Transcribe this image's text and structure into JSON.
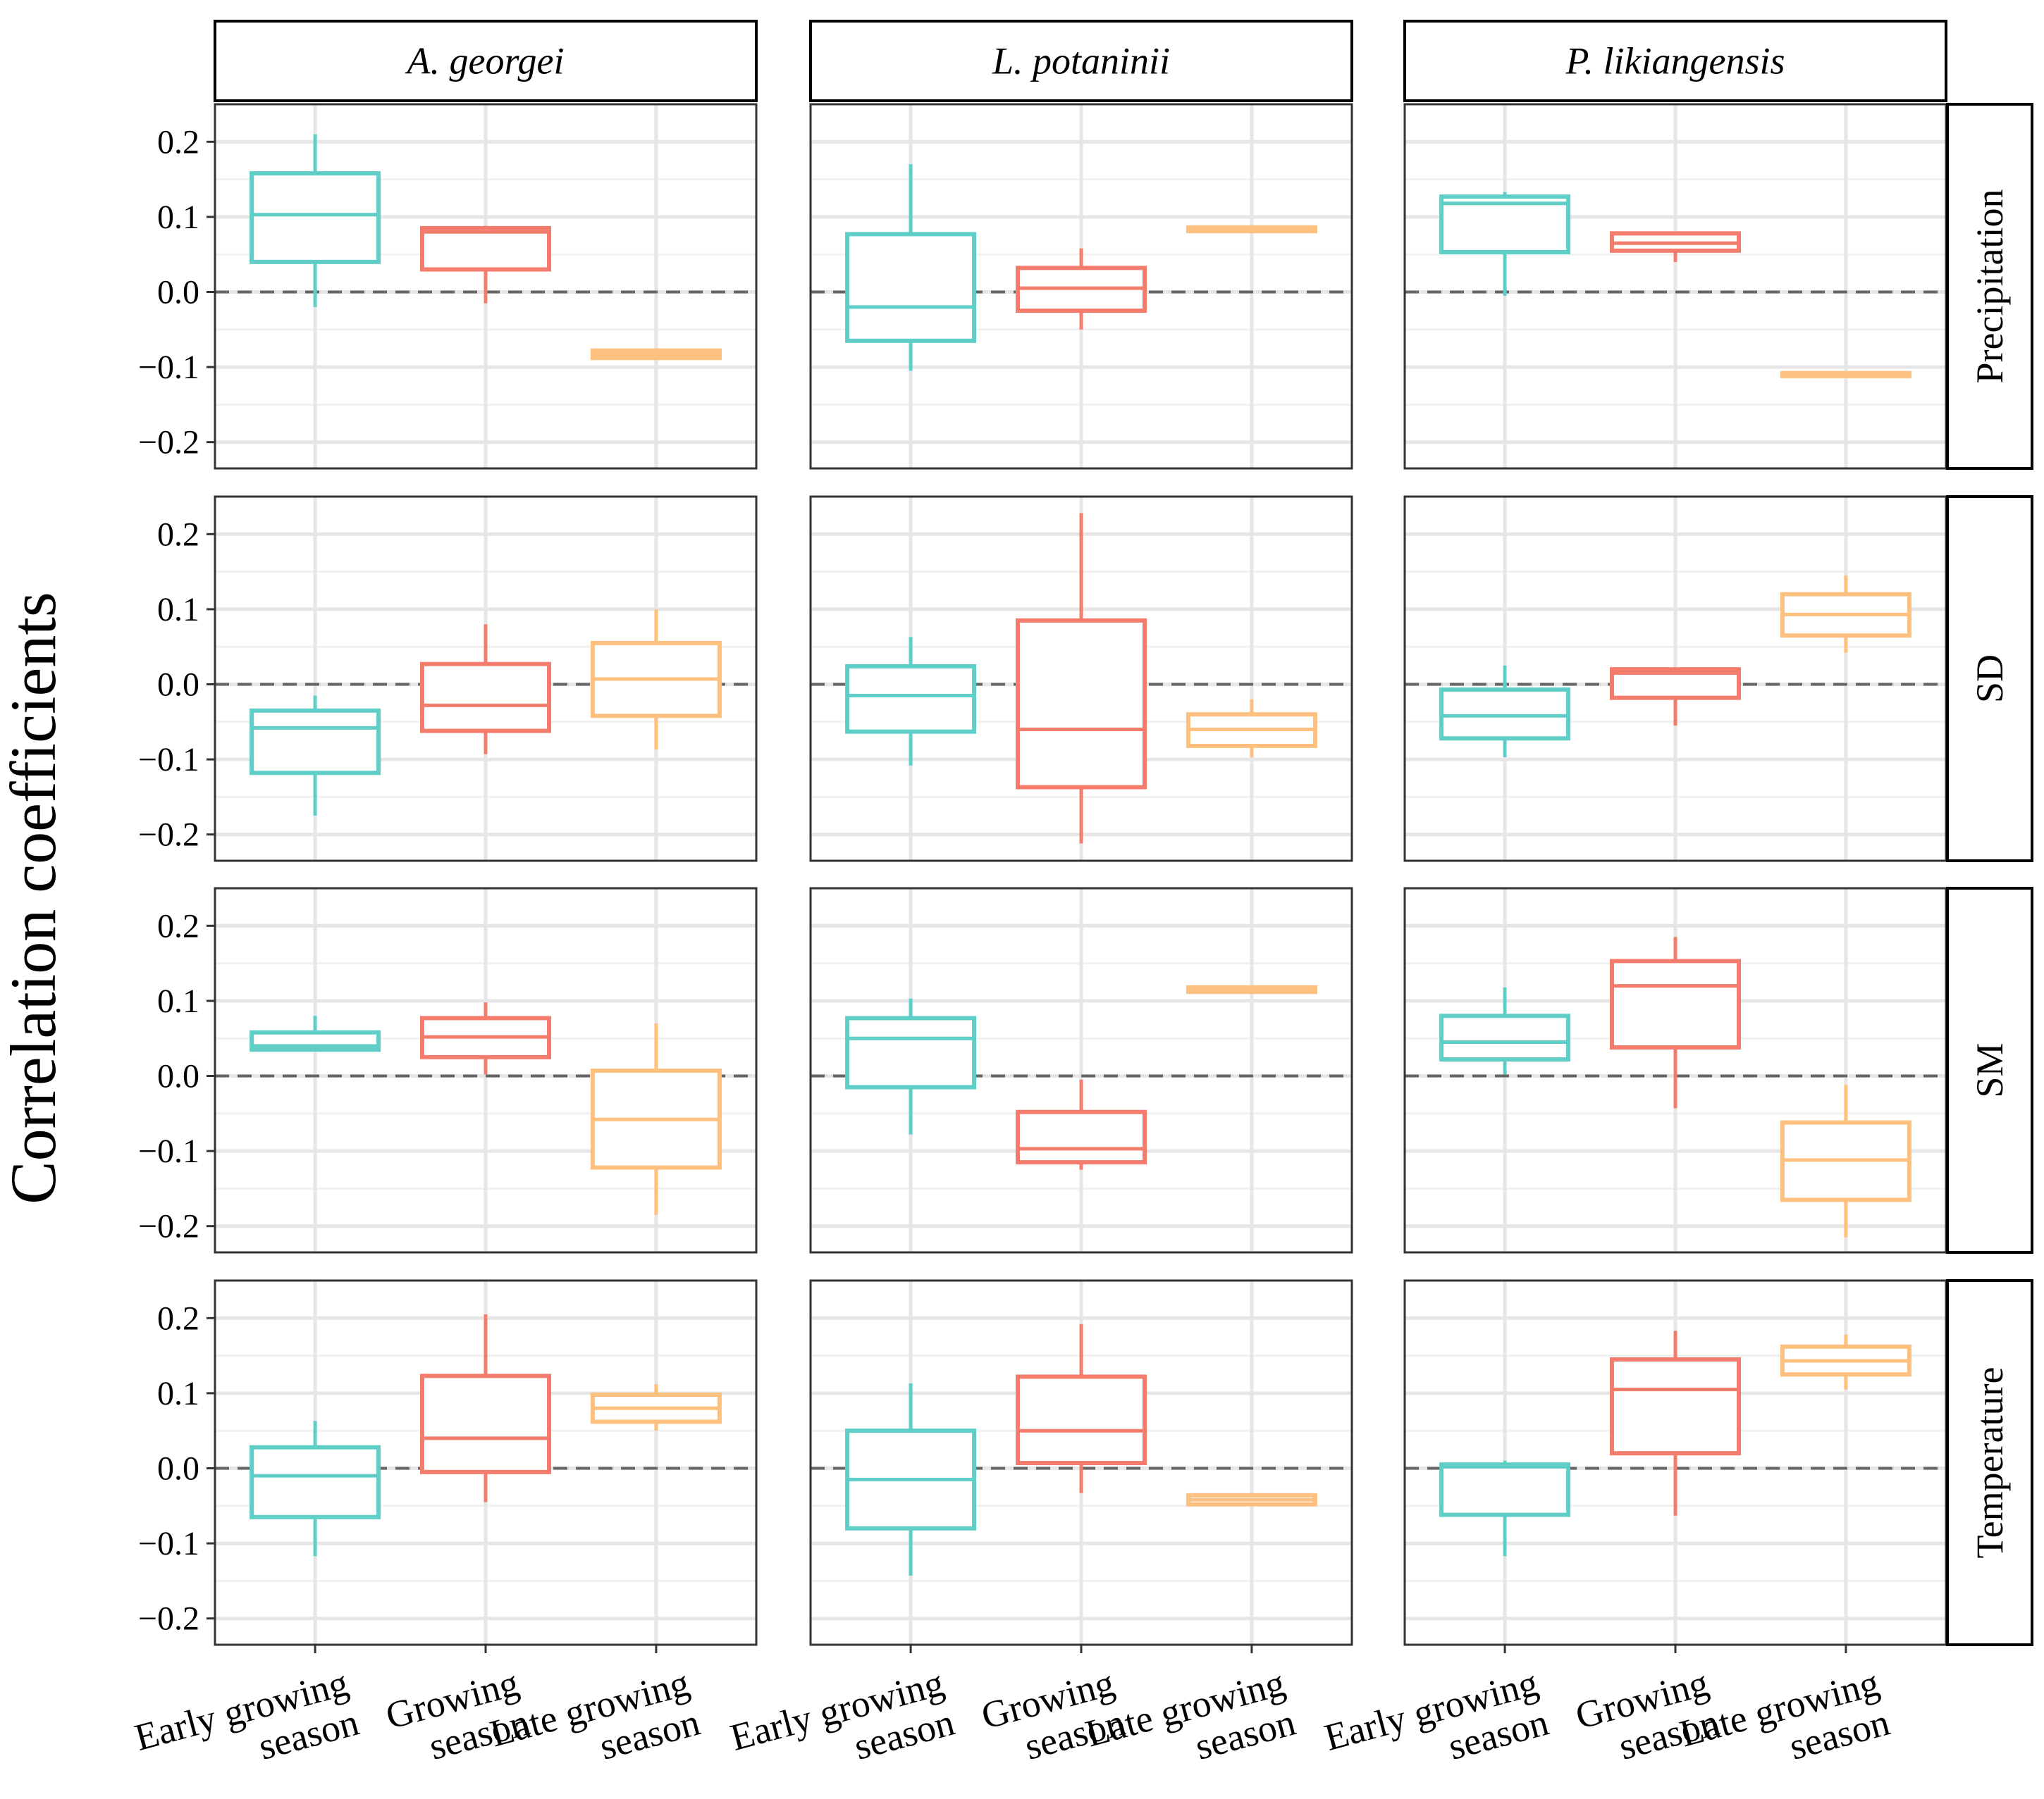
{
  "chart_data": {
    "type": "boxplot",
    "title": "",
    "ylabel": "Correlation coefficients",
    "xlabel": "",
    "ylim": [
      -0.235,
      0.25
    ],
    "yticks": [
      0.2,
      0.1,
      0.0,
      -0.1,
      -0.2
    ],
    "ytick_labels": [
      "0.2",
      "0.1",
      "0.0",
      "−0.1",
      "−0.2"
    ],
    "reference_line": 0.0,
    "columns": [
      "A. georgei",
      "L. potaninii",
      "P. likiangensis"
    ],
    "rows": [
      "Precipitation",
      "SD",
      "SM",
      "Temperature"
    ],
    "categories": [
      {
        "line1": "Early growing",
        "line2": "season"
      },
      {
        "line1": "Growing",
        "line2": "season"
      },
      {
        "line1": "Late growing",
        "line2": "season"
      }
    ],
    "colors": [
      "#5ECEC6",
      "#F47C6C",
      "#FDC07E"
    ],
    "panels": [
      [
        [
          [
            -0.02,
            0.04,
            0.103,
            0.158,
            0.21
          ],
          [
            -0.015,
            0.03,
            0.08,
            0.085,
            0.088
          ],
          [
            -0.09,
            -0.088,
            -0.083,
            -0.078,
            -0.075
          ]
        ],
        [
          [
            -0.105,
            -0.065,
            -0.02,
            0.077,
            0.17
          ],
          [
            -0.05,
            -0.025,
            0.005,
            0.032,
            0.058
          ],
          [
            0.08,
            0.081,
            0.083,
            0.086,
            0.087
          ]
        ],
        [
          [
            -0.005,
            0.053,
            0.118,
            0.127,
            0.133
          ],
          [
            0.04,
            0.055,
            0.065,
            0.078,
            0.078
          ],
          [
            -0.113,
            -0.112,
            -0.11,
            -0.108,
            -0.107
          ]
        ]
      ],
      [
        [
          [
            -0.175,
            -0.118,
            -0.058,
            -0.035,
            -0.015
          ],
          [
            -0.093,
            -0.062,
            -0.028,
            0.027,
            0.08
          ],
          [
            -0.087,
            -0.042,
            0.007,
            0.055,
            0.1
          ]
        ],
        [
          [
            -0.108,
            -0.063,
            -0.015,
            0.024,
            0.063
          ],
          [
            -0.212,
            -0.137,
            -0.06,
            0.085,
            0.228
          ],
          [
            -0.097,
            -0.082,
            -0.06,
            -0.04,
            -0.02
          ]
        ],
        [
          [
            -0.097,
            -0.072,
            -0.042,
            -0.007,
            0.025
          ],
          [
            -0.055,
            -0.018,
            0.015,
            0.02,
            0.022
          ],
          [
            0.042,
            0.065,
            0.093,
            0.12,
            0.145
          ]
        ]
      ],
      [
        [
          [
            0.035,
            0.035,
            0.04,
            0.058,
            0.08
          ],
          [
            0.002,
            0.025,
            0.052,
            0.077,
            0.098
          ],
          [
            -0.185,
            -0.122,
            -0.058,
            0.007,
            0.07
          ]
        ],
        [
          [
            -0.078,
            -0.015,
            0.05,
            0.077,
            0.103
          ],
          [
            -0.125,
            -0.115,
            -0.097,
            -0.048,
            -0.005
          ],
          [
            0.11,
            0.112,
            0.115,
            0.118,
            0.12
          ]
        ],
        [
          [
            0.002,
            0.022,
            0.045,
            0.08,
            0.118
          ],
          [
            -0.043,
            0.038,
            0.12,
            0.153,
            0.185
          ],
          [
            -0.215,
            -0.165,
            -0.112,
            -0.062,
            -0.012
          ]
        ]
      ],
      [
        [
          [
            -0.117,
            -0.065,
            -0.01,
            0.028,
            0.063
          ],
          [
            -0.045,
            -0.005,
            0.04,
            0.123,
            0.205
          ],
          [
            0.05,
            0.062,
            0.08,
            0.098,
            0.112
          ]
        ],
        [
          [
            -0.143,
            -0.08,
            -0.015,
            0.05,
            0.113
          ],
          [
            -0.033,
            0.007,
            0.05,
            0.122,
            0.192
          ],
          [
            -0.05,
            -0.048,
            -0.042,
            -0.036,
            -0.033
          ]
        ],
        [
          [
            -0.117,
            -0.062,
            0.002,
            0.005,
            0.01
          ],
          [
            -0.063,
            0.02,
            0.105,
            0.145,
            0.183
          ],
          [
            0.105,
            0.125,
            0.143,
            0.162,
            0.178
          ]
        ]
      ]
    ]
  }
}
